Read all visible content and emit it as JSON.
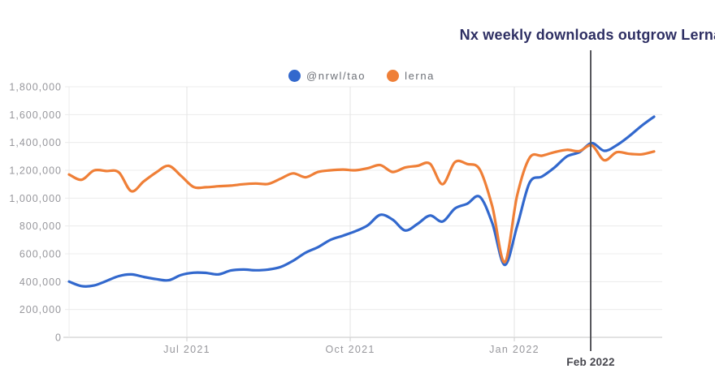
{
  "title": {
    "text": "Nx weekly downloads outgrow Lerna",
    "color": "#2e2f63"
  },
  "annotation": {
    "label": "Feb 2022",
    "t": 0.8917,
    "line_color": "#55555a",
    "label_color": "#46464d"
  },
  "colors": {
    "axis_labels": "#97979c",
    "legend_text": "#6d7077",
    "gridline": "#ececec",
    "month_gridline": "#e3e3e3",
    "axis_line": "#d8d8d8",
    "tick": "#cccccc"
  },
  "chart_data": {
    "type": "line",
    "title": "Nx weekly downloads outgrow Lerna",
    "xlabel": "",
    "ylabel": "",
    "ylim": [
      0,
      1800000
    ],
    "ytick_step": 200000,
    "grid": "horizontal + monthly vertical",
    "legend_position": "top-center",
    "xticks": [
      {
        "label": "Jul 2021",
        "t": 0.2014
      },
      {
        "label": "Oct 2021",
        "t": 0.4806
      },
      {
        "label": "Jan 2022",
        "t": 0.7611
      }
    ],
    "annotation": {
      "label": "Feb 2022",
      "t": 0.8917
    },
    "x": [
      "2021-04-25",
      "2021-05-02",
      "2021-05-09",
      "2021-05-16",
      "2021-05-23",
      "2021-05-30",
      "2021-06-06",
      "2021-06-13",
      "2021-06-20",
      "2021-06-27",
      "2021-07-04",
      "2021-07-11",
      "2021-07-18",
      "2021-07-25",
      "2021-08-01",
      "2021-08-08",
      "2021-08-15",
      "2021-08-22",
      "2021-08-29",
      "2021-09-05",
      "2021-09-12",
      "2021-09-19",
      "2021-09-26",
      "2021-10-03",
      "2021-10-10",
      "2021-10-17",
      "2021-10-24",
      "2021-10-31",
      "2021-11-07",
      "2021-11-14",
      "2021-11-21",
      "2021-11-28",
      "2021-12-05",
      "2021-12-12",
      "2021-12-19",
      "2021-12-26",
      "2022-01-02",
      "2022-01-09",
      "2022-01-16",
      "2022-01-23",
      "2022-01-30",
      "2022-02-06",
      "2022-02-13",
      "2022-02-20",
      "2022-02-27",
      "2022-03-06",
      "2022-03-13",
      "2022-03-20"
    ],
    "series": [
      {
        "name": "@nrwl/tao",
        "color": "#3268cd",
        "values": [
          400000,
          368000,
          372000,
          405000,
          440000,
          452000,
          434000,
          418000,
          410000,
          448000,
          464000,
          463000,
          452000,
          480000,
          487000,
          482000,
          487000,
          505000,
          550000,
          608000,
          648000,
          700000,
          730000,
          762000,
          805000,
          880000,
          845000,
          768000,
          815000,
          875000,
          832000,
          925000,
          960000,
          1010000,
          820000,
          520000,
          800000,
          1110000,
          1155000,
          1220000,
          1300000,
          1330000,
          1395000,
          1340000,
          1380000,
          1445000,
          1520000,
          1585000
        ]
      },
      {
        "name": "lerna",
        "color": "#ef7f37",
        "values": [
          1170000,
          1132000,
          1198000,
          1195000,
          1185000,
          1050000,
          1120000,
          1185000,
          1232000,
          1160000,
          1080000,
          1078000,
          1085000,
          1090000,
          1100000,
          1105000,
          1102000,
          1140000,
          1178000,
          1150000,
          1188000,
          1200000,
          1205000,
          1200000,
          1215000,
          1237000,
          1188000,
          1220000,
          1232000,
          1247000,
          1100000,
          1258000,
          1245000,
          1205000,
          940000,
          540000,
          1020000,
          1290000,
          1305000,
          1330000,
          1347000,
          1338000,
          1378000,
          1272000,
          1330000,
          1318000,
          1315000,
          1335000
        ]
      }
    ]
  }
}
